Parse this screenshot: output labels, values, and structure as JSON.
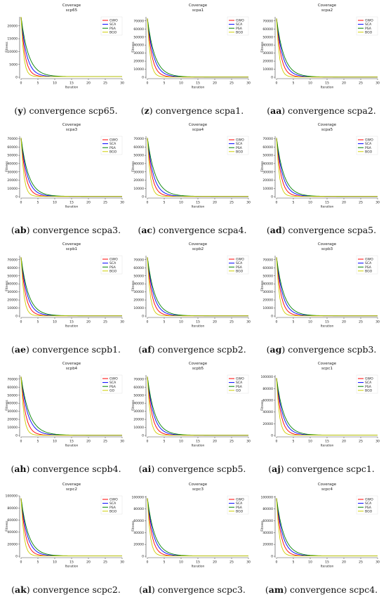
{
  "series_colors": {
    "GWO": "#ff0000",
    "SCA": "#0000ff",
    "PSA": "#008000",
    "BGO": "#cccc00"
  },
  "x_label": "Iteration",
  "y_label": "Fitness",
  "chart_data": [
    {
      "type": "line",
      "title": "Coverage",
      "subtitle": "scp65",
      "caption_letter": "y",
      "caption_text": "convergence scp65.",
      "xlabel": "Iteration",
      "ylabel": "Fitness",
      "xlim": [
        0,
        30
      ],
      "ylim": [
        0,
        23500
      ],
      "yticks": [
        0,
        5000,
        10000,
        15000,
        20000
      ],
      "xticks": [
        0,
        5,
        10,
        15,
        20,
        25,
        30
      ],
      "start": 23500,
      "final": 250,
      "legend": [
        "GWO",
        "SCA",
        "PSA",
        "BGO"
      ],
      "legend_position": "top-right",
      "series": [
        {
          "name": "GWO",
          "rate": 0.85
        },
        {
          "name": "SCA",
          "rate": 0.6
        },
        {
          "name": "PSA",
          "rate": 0.45
        },
        {
          "name": "BGO",
          "rate": 1.3
        }
      ]
    },
    {
      "type": "line",
      "title": "Coverage",
      "subtitle": "scpa1",
      "caption_letter": "z",
      "caption_text": "convergence scpa1.",
      "xlabel": "Iteration",
      "ylabel": "Fitness",
      "xlim": [
        0,
        30
      ],
      "ylim": [
        0,
        75000
      ],
      "yticks": [
        0,
        10000,
        20000,
        30000,
        40000,
        50000,
        60000,
        70000
      ],
      "xticks": [
        0,
        5,
        10,
        15,
        20,
        25,
        30
      ],
      "start": 73000,
      "final": 300,
      "legend": [
        "GWO",
        "SCA",
        "PSA",
        "BGO"
      ],
      "legend_position": "top-right",
      "series": [
        {
          "name": "GWO",
          "rate": 0.75
        },
        {
          "name": "SCA",
          "rate": 0.55
        },
        {
          "name": "PSA",
          "rate": 0.45
        },
        {
          "name": "BGO",
          "rate": 1.2
        }
      ]
    },
    {
      "type": "line",
      "title": "Coverage",
      "subtitle": "scpa2",
      "caption_letter": "aa",
      "caption_text": "convergence scpa2.",
      "xlabel": "Iteration",
      "ylabel": "Fitness",
      "xlim": [
        0,
        30
      ],
      "ylim": [
        0,
        75000
      ],
      "yticks": [
        0,
        10000,
        20000,
        30000,
        40000,
        50000,
        60000,
        70000
      ],
      "xticks": [
        0,
        5,
        10,
        15,
        20,
        25,
        30
      ],
      "start": 73000,
      "final": 300,
      "legend": [
        "GWO",
        "SCA",
        "PSA",
        "BGO"
      ],
      "legend_position": "top-right",
      "series": [
        {
          "name": "GWO",
          "rate": 0.75
        },
        {
          "name": "SCA",
          "rate": 0.55
        },
        {
          "name": "PSA",
          "rate": 0.45
        },
        {
          "name": "BGO",
          "rate": 1.2
        }
      ]
    },
    {
      "type": "line",
      "title": "Coverage",
      "subtitle": "scpa3",
      "caption_letter": "ab",
      "caption_text": "convergence scpa3.",
      "xlabel": "Iteration",
      "ylabel": "Fitness",
      "xlim": [
        0,
        30
      ],
      "ylim": [
        0,
        73000
      ],
      "yticks": [
        0,
        10000,
        20000,
        30000,
        40000,
        50000,
        60000,
        70000
      ],
      "xticks": [
        0,
        5,
        10,
        15,
        20,
        25,
        30
      ],
      "start": 71000,
      "final": 300,
      "legend": [
        "GWO",
        "SCA",
        "PSA",
        "BGO"
      ],
      "legend_position": "top-right",
      "series": [
        {
          "name": "GWO",
          "rate": 0.75
        },
        {
          "name": "SCA",
          "rate": 0.55
        },
        {
          "name": "PSA",
          "rate": 0.45
        },
        {
          "name": "BGO",
          "rate": 1.2
        }
      ]
    },
    {
      "type": "line",
      "title": "Coverage",
      "subtitle": "scpa4",
      "caption_letter": "ac",
      "caption_text": "convergence scpa4.",
      "xlabel": "Iteration",
      "ylabel": "Fitness",
      "xlim": [
        0,
        30
      ],
      "ylim": [
        0,
        73000
      ],
      "yticks": [
        0,
        10000,
        20000,
        30000,
        40000,
        50000,
        60000,
        70000
      ],
      "xticks": [
        0,
        5,
        10,
        15,
        20,
        25,
        30
      ],
      "start": 71000,
      "final": 300,
      "legend": [
        "GWO",
        "SCA",
        "PSA",
        "BGO"
      ],
      "legend_position": "top-right",
      "series": [
        {
          "name": "GWO",
          "rate": 0.75
        },
        {
          "name": "SCA",
          "rate": 0.55
        },
        {
          "name": "PSA",
          "rate": 0.42
        },
        {
          "name": "BGO",
          "rate": 1.2
        }
      ]
    },
    {
      "type": "line",
      "title": "Coverage",
      "subtitle": "scpa5",
      "caption_letter": "ad",
      "caption_text": "convergence scpa5.",
      "xlabel": "Iteration",
      "ylabel": "Fitness",
      "xlim": [
        0,
        30
      ],
      "ylim": [
        0,
        73000
      ],
      "yticks": [
        0,
        10000,
        20000,
        30000,
        40000,
        50000,
        60000,
        70000
      ],
      "xticks": [
        0,
        5,
        10,
        15,
        20,
        25,
        30
      ],
      "start": 71000,
      "final": 300,
      "legend": [
        "GWO",
        "SCA",
        "PSA",
        "BGO"
      ],
      "legend_position": "top-right",
      "series": [
        {
          "name": "GWO",
          "rate": 0.75
        },
        {
          "name": "SCA",
          "rate": 0.55
        },
        {
          "name": "PSA",
          "rate": 0.45
        },
        {
          "name": "BGO",
          "rate": 1.2
        }
      ]
    },
    {
      "type": "line",
      "title": "Coverage",
      "subtitle": "scpb1",
      "caption_letter": "ae",
      "caption_text": "convergence scpb1.",
      "xlabel": "Iteration",
      "ylabel": "Fitness",
      "xlim": [
        0,
        30
      ],
      "ylim": [
        0,
        75000
      ],
      "yticks": [
        0,
        10000,
        20000,
        30000,
        40000,
        50000,
        60000,
        70000
      ],
      "xticks": [
        0,
        5,
        10,
        15,
        20,
        25,
        30
      ],
      "start": 73000,
      "final": 300,
      "legend": [
        "GWO",
        "SCA",
        "PSA",
        "BGO"
      ],
      "legend_position": "top-right",
      "series": [
        {
          "name": "GWO",
          "rate": 0.75
        },
        {
          "name": "SCA",
          "rate": 0.55
        },
        {
          "name": "PSA",
          "rate": 0.45
        },
        {
          "name": "BGO",
          "rate": 1.2
        }
      ]
    },
    {
      "type": "line",
      "title": "Coverage",
      "subtitle": "scpb2",
      "caption_letter": "af",
      "caption_text": "convergence scpb2.",
      "xlabel": "Iteration",
      "ylabel": "Fitness",
      "xlim": [
        0,
        30
      ],
      "ylim": [
        0,
        75000
      ],
      "yticks": [
        0,
        10000,
        20000,
        30000,
        40000,
        50000,
        60000,
        70000
      ],
      "xticks": [
        0,
        5,
        10,
        15,
        20,
        25,
        30
      ],
      "start": 73000,
      "final": 300,
      "legend": [
        "GWO",
        "SCA",
        "PSA",
        "BGO"
      ],
      "legend_position": "top-right",
      "series": [
        {
          "name": "GWO",
          "rate": 0.75
        },
        {
          "name": "SCA",
          "rate": 0.55
        },
        {
          "name": "PSA",
          "rate": 0.45
        },
        {
          "name": "BGO",
          "rate": 1.2
        }
      ]
    },
    {
      "type": "line",
      "title": "Coverage",
      "subtitle": "scpb3",
      "caption_letter": "ag",
      "caption_text": "convergence scpb3.",
      "xlabel": "Iteration",
      "ylabel": "Fitness",
      "xlim": [
        0,
        30
      ],
      "ylim": [
        0,
        75000
      ],
      "yticks": [
        0,
        10000,
        20000,
        30000,
        40000,
        50000,
        60000,
        70000
      ],
      "xticks": [
        0,
        5,
        10,
        15,
        20,
        25,
        30
      ],
      "start": 73000,
      "final": 300,
      "legend": [
        "GWO",
        "SCA",
        "PSA",
        "BGO"
      ],
      "legend_position": "top-right",
      "series": [
        {
          "name": "GWO",
          "rate": 0.75
        },
        {
          "name": "SCA",
          "rate": 0.55
        },
        {
          "name": "PSA",
          "rate": 0.45
        },
        {
          "name": "BGO",
          "rate": 1.2
        }
      ]
    },
    {
      "type": "line",
      "title": "Coverage",
      "subtitle": "scpb4",
      "caption_letter": "ah",
      "caption_text": "convergence scpb4.",
      "xlabel": "Iteration",
      "ylabel": "Fitness",
      "xlim": [
        0,
        30
      ],
      "ylim": [
        0,
        75000
      ],
      "yticks": [
        0,
        10000,
        20000,
        30000,
        40000,
        50000,
        60000,
        70000
      ],
      "xticks": [
        0,
        5,
        10,
        15,
        20,
        25,
        30
      ],
      "start": 73000,
      "final": 300,
      "legend": [
        "GWO",
        "SCA",
        "PSA",
        "GO"
      ],
      "legend_position": "top-right",
      "series": [
        {
          "name": "GWO",
          "rate": 0.75
        },
        {
          "name": "SCA",
          "rate": 0.5
        },
        {
          "name": "PSA",
          "rate": 0.4
        },
        {
          "name": "GO",
          "rate": 1.2
        }
      ]
    },
    {
      "type": "line",
      "title": "Coverage",
      "subtitle": "scpb5",
      "caption_letter": "ai",
      "caption_text": "convergence scpb5.",
      "xlabel": "Iteration",
      "ylabel": "Fitness",
      "xlim": [
        0,
        30
      ],
      "ylim": [
        0,
        75000
      ],
      "yticks": [
        0,
        10000,
        20000,
        30000,
        40000,
        50000,
        60000,
        70000
      ],
      "xticks": [
        0,
        5,
        10,
        15,
        20,
        25,
        30
      ],
      "start": 73000,
      "final": 300,
      "legend": [
        "GWO",
        "SCA",
        "PSA",
        "GO"
      ],
      "legend_position": "top-right",
      "series": [
        {
          "name": "GWO",
          "rate": 0.75
        },
        {
          "name": "SCA",
          "rate": 0.55
        },
        {
          "name": "PSA",
          "rate": 0.45
        },
        {
          "name": "GO",
          "rate": 1.2
        }
      ]
    },
    {
      "type": "line",
      "title": "Coverage",
      "subtitle": "scpc1",
      "caption_letter": "aj",
      "caption_text": "convergence scpc1.",
      "xlabel": "Iteration",
      "ylabel": "Fitness",
      "xlim": [
        0,
        30
      ],
      "ylim": [
        0,
        103000
      ],
      "yticks": [
        0,
        20000,
        40000,
        60000,
        80000,
        100000
      ],
      "xticks": [
        0,
        5,
        10,
        15,
        20,
        25,
        30
      ],
      "start": 98000,
      "final": 500,
      "legend": [
        "GWO",
        "SCA",
        "PSA",
        "BGO"
      ],
      "legend_position": "top-right",
      "series": [
        {
          "name": "GWO",
          "rate": 0.75
        },
        {
          "name": "SCA",
          "rate": 0.55
        },
        {
          "name": "PSA",
          "rate": 0.45
        },
        {
          "name": "BGO",
          "rate": 1.2
        }
      ]
    },
    {
      "type": "line",
      "title": "Coverage",
      "subtitle": "scpc2",
      "caption_letter": "ak",
      "caption_text": "convergence scpc2.",
      "xlabel": "Iteration",
      "ylabel": "Fitness",
      "xlim": [
        0,
        30
      ],
      "ylim": [
        0,
        100000
      ],
      "yticks": [
        0,
        20000,
        40000,
        60000,
        80000,
        100000
      ],
      "xticks": [
        0,
        5,
        10,
        15,
        20,
        25,
        30
      ],
      "start": 96000,
      "final": 500,
      "legend": [
        "GWO",
        "SCA",
        "PSA",
        "BGO"
      ],
      "legend_position": "top-right",
      "series": [
        {
          "name": "GWO",
          "rate": 0.75
        },
        {
          "name": "SCA",
          "rate": 0.55
        },
        {
          "name": "PSA",
          "rate": 0.45
        },
        {
          "name": "BGO",
          "rate": 1.2
        }
      ]
    },
    {
      "type": "line",
      "title": "Coverage",
      "subtitle": "scpc3",
      "caption_letter": "al",
      "caption_text": "convergence scpc3.",
      "xlabel": "Iteration",
      "ylabel": "Fitness",
      "xlim": [
        0,
        30
      ],
      "ylim": [
        0,
        102000
      ],
      "yticks": [
        0,
        20000,
        40000,
        60000,
        80000,
        100000
      ],
      "xticks": [
        0,
        5,
        10,
        15,
        20,
        25,
        30
      ],
      "start": 98000,
      "final": 500,
      "legend": [
        "GWO",
        "SCA",
        "PSA",
        "BGO"
      ],
      "legend_position": "top-right",
      "series": [
        {
          "name": "GWO",
          "rate": 0.75
        },
        {
          "name": "SCA",
          "rate": 0.55
        },
        {
          "name": "PSA",
          "rate": 0.45
        },
        {
          "name": "BGO",
          "rate": 1.2
        }
      ]
    },
    {
      "type": "line",
      "title": "Coverage",
      "subtitle": "scpc4",
      "caption_letter": "am",
      "caption_text": "convergence scpc4.",
      "xlabel": "Iteration",
      "ylabel": "Fitness",
      "xlim": [
        0,
        30
      ],
      "ylim": [
        0,
        102000
      ],
      "yticks": [
        0,
        20000,
        40000,
        60000,
        80000,
        100000
      ],
      "xticks": [
        0,
        5,
        10,
        15,
        20,
        25,
        30
      ],
      "start": 98000,
      "final": 500,
      "legend": [
        "GWO",
        "SCA",
        "PSA",
        "BGO"
      ],
      "legend_position": "top-right",
      "series": [
        {
          "name": "GWO",
          "rate": 0.75
        },
        {
          "name": "SCA",
          "rate": 0.55
        },
        {
          "name": "PSA",
          "rate": 0.45
        },
        {
          "name": "BGO",
          "rate": 1.2
        }
      ]
    }
  ]
}
